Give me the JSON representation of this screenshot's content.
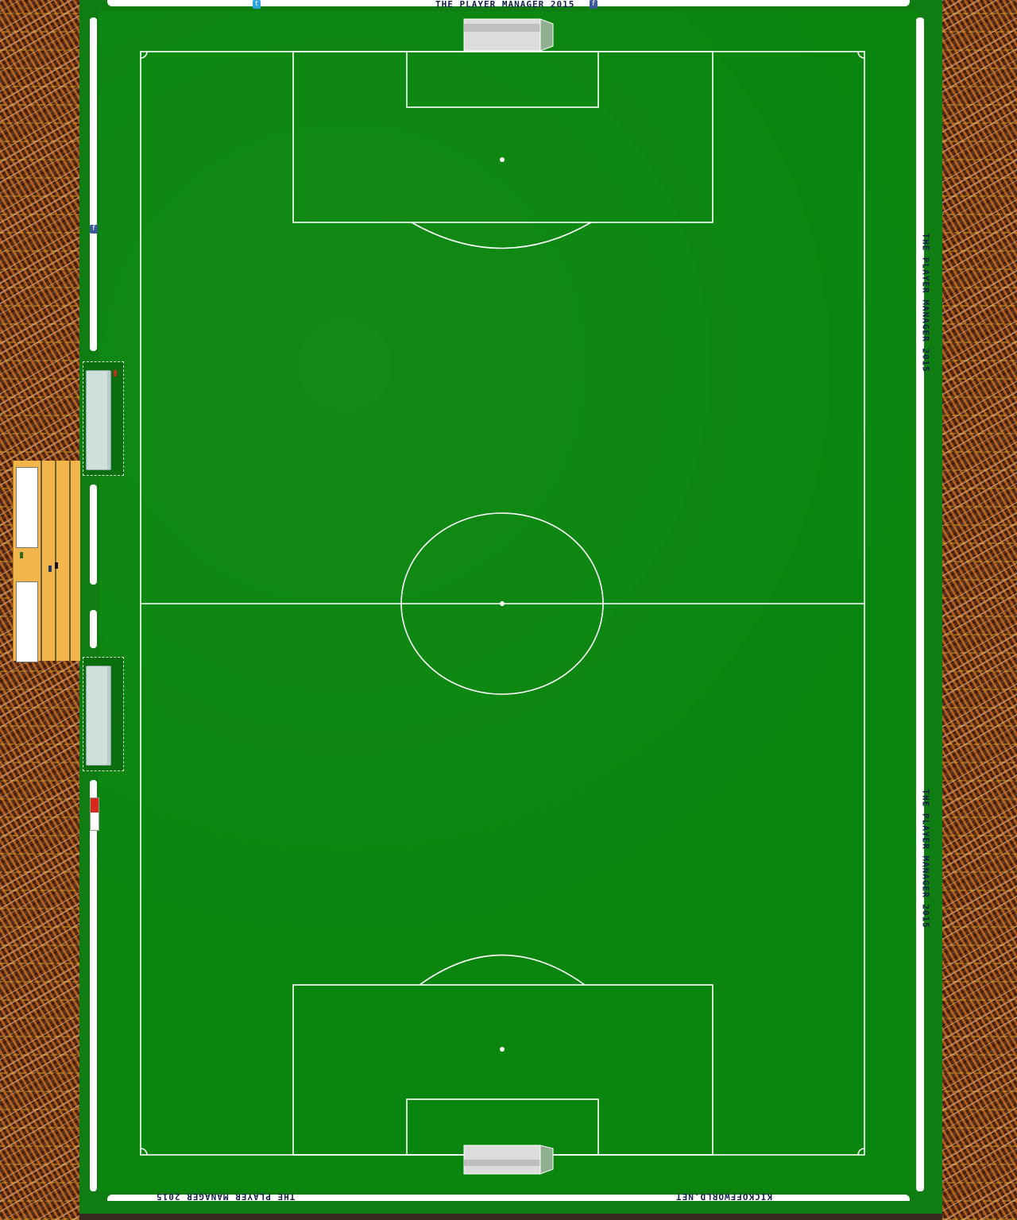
{
  "banners": {
    "top_title": "THE PLAYER MANAGER 2015",
    "bottom_left": "THE PLAYER MANAGER 2015",
    "bottom_right": "KICKOFFWORLD.NET",
    "side_right_1": "THE PLAYER MANAGER 2015",
    "side_right_2": "THE PLAYER MANAGER 2015"
  },
  "icons": {
    "twitter": "twitter-icon",
    "facebook": "facebook-icon",
    "youtube": "youtube-icon",
    "twitter_glyph": "t",
    "facebook_glyph": "f"
  },
  "colors": {
    "pitch": "#0a860f",
    "lines": "#ffffff",
    "crowd": "#5a2a14"
  }
}
